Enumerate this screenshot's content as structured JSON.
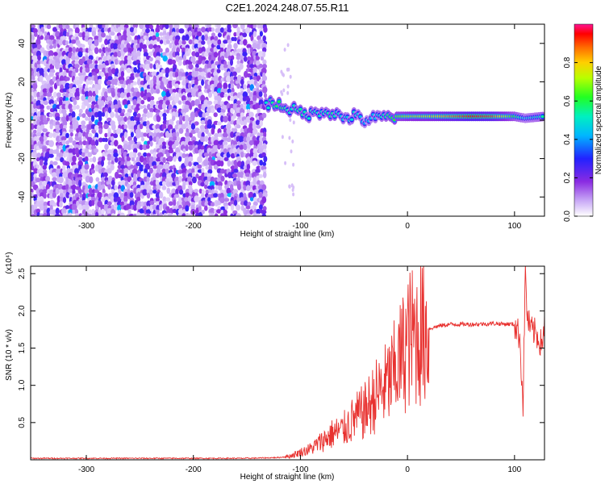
{
  "title": "C2E1.2024.248.07.55.R11",
  "chart_data": [
    {
      "type": "heatmap",
      "xlabel": "Height of straight line (km)",
      "ylabel": "Frequency (Hz)",
      "x_ticks": [
        "-300",
        "-200",
        "-100",
        "0",
        "100"
      ],
      "x_tick_values": [
        -300,
        -200,
        -100,
        0,
        100
      ],
      "y_ticks": [
        "-40",
        "-20",
        "0",
        "20",
        "40"
      ],
      "y_tick_values": [
        -40,
        -20,
        0,
        20,
        40
      ],
      "xlim": [
        -352,
        128
      ],
      "ylim": [
        -50,
        50
      ],
      "colorbar": {
        "label": "Normalized spectral amplitude",
        "ticks": [
          "0.0",
          "0.2",
          "0.4",
          "0.6",
          "0.8"
        ],
        "tick_values": [
          0.0,
          0.2,
          0.4,
          0.6,
          0.8
        ],
        "range": [
          0,
          1
        ]
      },
      "noise_region": {
        "x_from": -352,
        "x_to": -133,
        "y_from": -50,
        "y_to": 50
      },
      "signal_track": [
        {
          "x": -132,
          "freq": 9,
          "amplitude": 0.5
        },
        {
          "x": -120,
          "freq": 8,
          "amplitude": 0.6
        },
        {
          "x": -110,
          "freq": 6,
          "amplitude": 0.5
        },
        {
          "x": -100,
          "freq": 4,
          "amplitude": 0.55
        },
        {
          "x": -90,
          "freq": 3,
          "amplitude": 0.5
        },
        {
          "x": -80,
          "freq": 5,
          "amplitude": 0.5
        },
        {
          "x": -70,
          "freq": 4,
          "amplitude": 0.55
        },
        {
          "x": -60,
          "freq": 1,
          "amplitude": 0.45
        },
        {
          "x": -50,
          "freq": 2,
          "amplitude": 0.5
        },
        {
          "x": -40,
          "freq": 0,
          "amplitude": 0.4
        },
        {
          "x": -30,
          "freq": 1,
          "amplitude": 0.45
        },
        {
          "x": -20,
          "freq": 1.5,
          "amplitude": 0.55
        },
        {
          "x": -10,
          "freq": 2,
          "amplitude": 0.65
        },
        {
          "x": 0,
          "freq": 2,
          "amplitude": 0.7
        },
        {
          "x": 20,
          "freq": 2,
          "amplitude": 0.75
        },
        {
          "x": 40,
          "freq": 2,
          "amplitude": 0.85
        },
        {
          "x": 60,
          "freq": 2,
          "amplitude": 0.95
        },
        {
          "x": 80,
          "freq": 2,
          "amplitude": 0.9
        },
        {
          "x": 100,
          "freq": 2,
          "amplitude": 0.6
        },
        {
          "x": 110,
          "freq": 1,
          "amplitude": 0.45
        },
        {
          "x": 128,
          "freq": 2,
          "amplitude": 0.55
        }
      ]
    },
    {
      "type": "line",
      "xlabel": "Height of straight line (km)",
      "ylabel": "SNR (10 * v/v)",
      "y_multiplier": "(x10⁴)",
      "x_ticks": [
        "-300",
        "-200",
        "-100",
        "0",
        "100"
      ],
      "x_tick_values": [
        -300,
        -200,
        -100,
        0,
        100
      ],
      "y_ticks": [
        "0.5",
        "1.0",
        "1.5",
        "2.0",
        "2.5"
      ],
      "y_tick_values": [
        0.5,
        1.0,
        1.5,
        2.0,
        2.5
      ],
      "xlim": [
        -352,
        128
      ],
      "ylim": [
        0,
        2.6
      ],
      "color": "#e8312f",
      "series": [
        {
          "x": [
            -352,
            -300,
            -250,
            -200,
            -150,
            -120,
            -110,
            -100,
            -90,
            -80,
            -70,
            -60,
            -50,
            -40,
            -30,
            -20,
            -15,
            -10,
            -5,
            0,
            10,
            20,
            30,
            40,
            60,
            80,
            100,
            105,
            108,
            110,
            112,
            115,
            120,
            125,
            128
          ],
          "values": [
            0.02,
            0.02,
            0.02,
            0.02,
            0.02,
            0.03,
            0.05,
            0.1,
            0.15,
            0.25,
            0.35,
            0.4,
            0.55,
            0.65,
            0.85,
            1.0,
            1.1,
            1.25,
            1.4,
            1.6,
            1.7,
            1.76,
            1.8,
            1.82,
            1.82,
            1.83,
            1.82,
            1.65,
            0.7,
            2.55,
            1.9,
            1.75,
            1.7,
            1.55,
            1.8
          ]
        }
      ]
    }
  ]
}
